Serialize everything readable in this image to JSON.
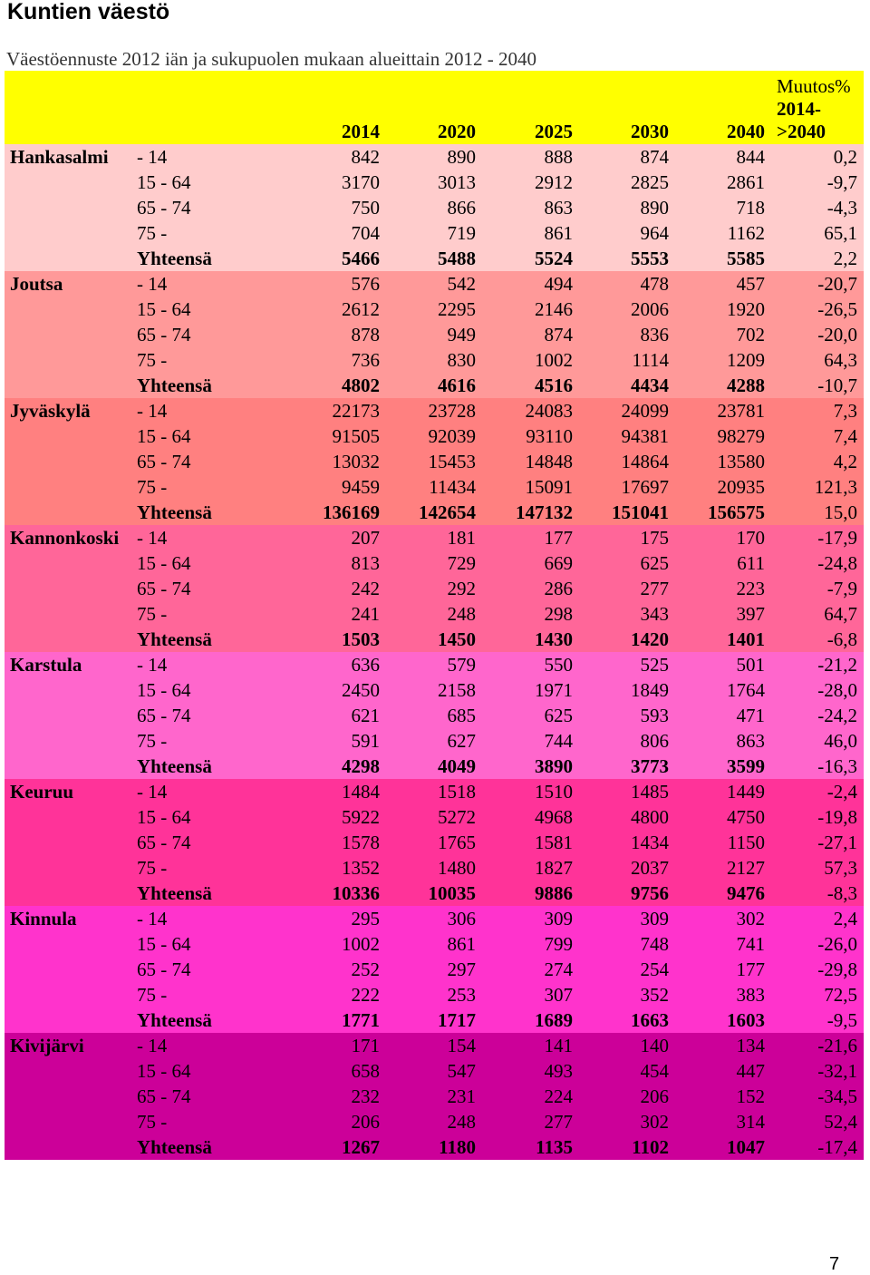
{
  "page": {
    "title": "Kuntien väestö",
    "subtitle": "Väestöennuste 2012 iän ja sukupuolen mukaan alueittain 2012 - 2040",
    "page_number": "7"
  },
  "table": {
    "headers": {
      "years": [
        "2014",
        "2020",
        "2025",
        "2030",
        "2040"
      ],
      "change_line1": "Muutos%",
      "change_line2": "2014-",
      "change_line3": ">2040"
    },
    "regions": [
      {
        "name": "Hankasalmi",
        "color": "#ffcccc",
        "rows": [
          {
            "age": "- 14",
            "values": [
              "842",
              "890",
              "888",
              "874",
              "844"
            ],
            "change": "0,2"
          },
          {
            "age": "15 - 64",
            "values": [
              "3170",
              "3013",
              "2912",
              "2825",
              "2861"
            ],
            "change": "-9,7"
          },
          {
            "age": "65 - 74",
            "values": [
              "750",
              "866",
              "863",
              "890",
              "718"
            ],
            "change": "-4,3"
          },
          {
            "age": "75 -",
            "values": [
              "704",
              "719",
              "861",
              "964",
              "1162"
            ],
            "change": "65,1"
          },
          {
            "age": "Yhteensä",
            "values": [
              "5466",
              "5488",
              "5524",
              "5553",
              "5585"
            ],
            "change": "2,2"
          }
        ]
      },
      {
        "name": "Joutsa",
        "color": "#ff9999",
        "rows": [
          {
            "age": "- 14",
            "values": [
              "576",
              "542",
              "494",
              "478",
              "457"
            ],
            "change": "-20,7"
          },
          {
            "age": "15 - 64",
            "values": [
              "2612",
              "2295",
              "2146",
              "2006",
              "1920"
            ],
            "change": "-26,5"
          },
          {
            "age": "65 - 74",
            "values": [
              "878",
              "949",
              "874",
              "836",
              "702"
            ],
            "change": "-20,0"
          },
          {
            "age": "75 -",
            "values": [
              "736",
              "830",
              "1002",
              "1114",
              "1209"
            ],
            "change": "64,3"
          },
          {
            "age": "Yhteensä",
            "values": [
              "4802",
              "4616",
              "4516",
              "4434",
              "4288"
            ],
            "change": "-10,7"
          }
        ]
      },
      {
        "name": "Jyväskylä",
        "color": "#ff8080",
        "rows": [
          {
            "age": "- 14",
            "values": [
              "22173",
              "23728",
              "24083",
              "24099",
              "23781"
            ],
            "change": "7,3"
          },
          {
            "age": "15 - 64",
            "values": [
              "91505",
              "92039",
              "93110",
              "94381",
              "98279"
            ],
            "change": "7,4"
          },
          {
            "age": "65 - 74",
            "values": [
              "13032",
              "15453",
              "14848",
              "14864",
              "13580"
            ],
            "change": "4,2"
          },
          {
            "age": "75 -",
            "values": [
              "9459",
              "11434",
              "15091",
              "17697",
              "20935"
            ],
            "change": "121,3"
          },
          {
            "age": "Yhteensä",
            "values": [
              "136169",
              "142654",
              "147132",
              "151041",
              "156575"
            ],
            "change": "15,0"
          }
        ]
      },
      {
        "name": "Kannonkoski",
        "color": "#ff6699",
        "rows": [
          {
            "age": "- 14",
            "values": [
              "207",
              "181",
              "177",
              "175",
              "170"
            ],
            "change": "-17,9"
          },
          {
            "age": "15 - 64",
            "values": [
              "813",
              "729",
              "669",
              "625",
              "611"
            ],
            "change": "-24,8"
          },
          {
            "age": "65 - 74",
            "values": [
              "242",
              "292",
              "286",
              "277",
              "223"
            ],
            "change": "-7,9"
          },
          {
            "age": "75 -",
            "values": [
              "241",
              "248",
              "298",
              "343",
              "397"
            ],
            "change": "64,7"
          },
          {
            "age": "Yhteensä",
            "values": [
              "1503",
              "1450",
              "1430",
              "1420",
              "1401"
            ],
            "change": "-6,8"
          }
        ]
      },
      {
        "name": "Karstula",
        "color": "#ff66cc",
        "rows": [
          {
            "age": "- 14",
            "values": [
              "636",
              "579",
              "550",
              "525",
              "501"
            ],
            "change": "-21,2"
          },
          {
            "age": "15 - 64",
            "values": [
              "2450",
              "2158",
              "1971",
              "1849",
              "1764"
            ],
            "change": "-28,0"
          },
          {
            "age": "65 - 74",
            "values": [
              "621",
              "685",
              "625",
              "593",
              "471"
            ],
            "change": "-24,2"
          },
          {
            "age": "75 -",
            "values": [
              "591",
              "627",
              "744",
              "806",
              "863"
            ],
            "change": "46,0"
          },
          {
            "age": "Yhteensä",
            "values": [
              "4298",
              "4049",
              "3890",
              "3773",
              "3599"
            ],
            "change": "-16,3"
          }
        ]
      },
      {
        "name": "Keuruu",
        "color": "#ff3399",
        "rows": [
          {
            "age": "- 14",
            "values": [
              "1484",
              "1518",
              "1510",
              "1485",
              "1449"
            ],
            "change": "-2,4"
          },
          {
            "age": "15 - 64",
            "values": [
              "5922",
              "5272",
              "4968",
              "4800",
              "4750"
            ],
            "change": "-19,8"
          },
          {
            "age": "65 - 74",
            "values": [
              "1578",
              "1765",
              "1581",
              "1434",
              "1150"
            ],
            "change": "-27,1"
          },
          {
            "age": "75 -",
            "values": [
              "1352",
              "1480",
              "1827",
              "2037",
              "2127"
            ],
            "change": "57,3"
          },
          {
            "age": "Yhteensä",
            "values": [
              "10336",
              "10035",
              "9886",
              "9756",
              "9476"
            ],
            "change": "-8,3"
          }
        ]
      },
      {
        "name": "Kinnula",
        "color": "#ff33cc",
        "rows": [
          {
            "age": "- 14",
            "values": [
              "295",
              "306",
              "309",
              "309",
              "302"
            ],
            "change": "2,4"
          },
          {
            "age": "15 - 64",
            "values": [
              "1002",
              "861",
              "799",
              "748",
              "741"
            ],
            "change": "-26,0"
          },
          {
            "age": "65 - 74",
            "values": [
              "252",
              "297",
              "274",
              "254",
              "177"
            ],
            "change": "-29,8"
          },
          {
            "age": "75 -",
            "values": [
              "222",
              "253",
              "307",
              "352",
              "383"
            ],
            "change": "72,5"
          },
          {
            "age": "Yhteensä",
            "values": [
              "1771",
              "1717",
              "1689",
              "1663",
              "1603"
            ],
            "change": "-9,5"
          }
        ]
      },
      {
        "name": "Kivijärvi",
        "color": "#cc0099",
        "rows": [
          {
            "age": "- 14",
            "values": [
              "171",
              "154",
              "141",
              "140",
              "134"
            ],
            "change": "-21,6"
          },
          {
            "age": "15 - 64",
            "values": [
              "658",
              "547",
              "493",
              "454",
              "447"
            ],
            "change": "-32,1"
          },
          {
            "age": "65 - 74",
            "values": [
              "232",
              "231",
              "224",
              "206",
              "152"
            ],
            "change": "-34,5"
          },
          {
            "age": "75 -",
            "values": [
              "206",
              "248",
              "277",
              "302",
              "314"
            ],
            "change": "52,4"
          },
          {
            "age": "Yhteensä",
            "values": [
              "1267",
              "1180",
              "1135",
              "1102",
              "1047"
            ],
            "change": "-17,4"
          }
        ]
      }
    ]
  }
}
